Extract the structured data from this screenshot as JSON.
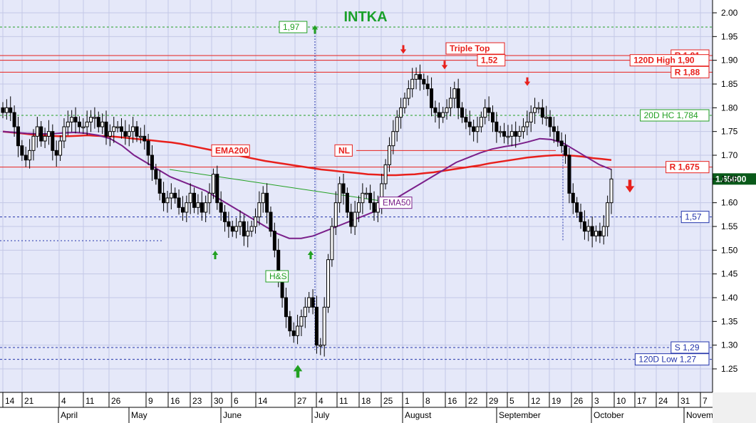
{
  "chart_data": {
    "type": "candlestick",
    "title": "INTKA",
    "last_price": "1.65000",
    "ylim": [
      1.22,
      2.02
    ],
    "yticks": [
      2.0,
      1.95,
      1.9,
      1.85,
      1.8,
      1.75,
      1.7,
      1.65,
      1.6,
      1.55,
      1.5,
      1.45,
      1.4,
      1.35,
      1.3,
      1.25
    ],
    "yticks_text": [
      "2.00",
      "1.95",
      "1.90",
      "1.85",
      "1.80",
      "1.75",
      "1.70",
      "1.65",
      "1.60",
      "1.55",
      "1.50",
      "1.45",
      "1.40",
      "1.35",
      "1.30",
      "1.25"
    ],
    "day_ticks": [
      "14",
      "21",
      "4",
      "11",
      "26",
      "9",
      "16",
      "23",
      "30",
      "6",
      "14",
      "27",
      "4",
      "11",
      "18",
      "25",
      "1",
      "8",
      "16",
      "22",
      "29",
      "5",
      "12",
      "19",
      "26",
      "3",
      "10",
      "17",
      "24",
      "31",
      "7"
    ],
    "months": [
      "April",
      "May",
      "June",
      "July",
      "August",
      "September",
      "October",
      "Novem"
    ],
    "horizontal_levels": [
      {
        "label": "R 1,91",
        "value": 1.91,
        "color": "#e8201c"
      },
      {
        "label": "120D High 1,90",
        "value": 1.9,
        "color": "#e8201c"
      },
      {
        "label": "R 1,88",
        "value": 1.875,
        "color": "#e8201c"
      },
      {
        "label": "20D HC 1,784",
        "value": 1.784,
        "color": "#22a022"
      },
      {
        "label": "R 1,675",
        "value": 1.675,
        "color": "#e8201c"
      },
      {
        "label": "1,57",
        "value": 1.57,
        "color": "#2233aa"
      },
      {
        "label": "S 1,29",
        "value": 1.295,
        "color": "#2233aa"
      },
      {
        "label": "120D Low 1,27",
        "value": 1.27,
        "color": "#2233aa"
      }
    ],
    "annotations": [
      "Triple Top",
      "1,52",
      "1,97",
      "EMA200",
      "EMA50",
      "NL",
      "H&S"
    ],
    "candles_close": [
      1.79,
      1.8,
      1.79,
      1.76,
      1.72,
      1.7,
      1.69,
      1.71,
      1.74,
      1.76,
      1.73,
      1.74,
      1.75,
      1.71,
      1.7,
      1.73,
      1.76,
      1.77,
      1.78,
      1.77,
      1.76,
      1.76,
      1.77,
      1.78,
      1.78,
      1.76,
      1.77,
      1.74,
      1.75,
      1.76,
      1.76,
      1.75,
      1.74,
      1.75,
      1.76,
      1.74,
      1.74,
      1.73,
      1.7,
      1.67,
      1.65,
      1.62,
      1.6,
      1.61,
      1.62,
      1.61,
      1.59,
      1.58,
      1.6,
      1.62,
      1.59,
      1.6,
      1.58,
      1.6,
      1.62,
      1.66,
      1.6,
      1.58,
      1.56,
      1.55,
      1.54,
      1.55,
      1.56,
      1.53,
      1.54,
      1.55,
      1.57,
      1.6,
      1.62,
      1.58,
      1.54,
      1.5,
      1.44,
      1.4,
      1.36,
      1.33,
      1.32,
      1.34,
      1.36,
      1.38,
      1.4,
      1.38,
      1.3,
      1.3,
      1.38,
      1.48,
      1.55,
      1.6,
      1.64,
      1.62,
      1.58,
      1.55,
      1.58,
      1.6,
      1.62,
      1.62,
      1.6,
      1.58,
      1.6,
      1.64,
      1.68,
      1.72,
      1.75,
      1.78,
      1.8,
      1.82,
      1.84,
      1.86,
      1.87,
      1.86,
      1.85,
      1.84,
      1.8,
      1.79,
      1.78,
      1.79,
      1.8,
      1.82,
      1.84,
      1.8,
      1.78,
      1.77,
      1.76,
      1.75,
      1.76,
      1.78,
      1.8,
      1.79,
      1.77,
      1.75,
      1.75,
      1.74,
      1.74,
      1.75,
      1.74,
      1.75,
      1.76,
      1.77,
      1.79,
      1.8,
      1.8,
      1.78,
      1.78,
      1.76,
      1.75,
      1.73,
      1.72,
      1.7,
      1.62,
      1.6,
      1.58,
      1.56,
      1.54,
      1.55,
      1.53,
      1.54,
      1.53,
      1.55,
      1.6,
      1.65
    ],
    "ema200": [
      1.75,
      1.748,
      1.746,
      1.744,
      1.742,
      1.741,
      1.74,
      1.74,
      1.741,
      1.742,
      1.741,
      1.74,
      1.739,
      1.737,
      1.735,
      1.733,
      1.731,
      1.729,
      1.727,
      1.724,
      1.72,
      1.716,
      1.712,
      1.708,
      1.704,
      1.7,
      1.696,
      1.692,
      1.688,
      1.685,
      1.682,
      1.679,
      1.676,
      1.673,
      1.67,
      1.668,
      1.666,
      1.664,
      1.662,
      1.66,
      1.659,
      1.658,
      1.658,
      1.659,
      1.66,
      1.662,
      1.664,
      1.667,
      1.67,
      1.673,
      1.676,
      1.679,
      1.683,
      1.686,
      1.689,
      1.692,
      1.695,
      1.697,
      1.699,
      1.7,
      1.7,
      1.699,
      1.697,
      1.694,
      1.692,
      1.69
    ],
    "ema50": [
      1.75,
      1.748,
      1.746,
      1.745,
      1.745,
      1.747,
      1.748,
      1.746,
      1.742,
      1.735,
      1.72,
      1.7,
      1.685,
      1.67,
      1.655,
      1.645,
      1.635,
      1.625,
      1.61,
      1.595,
      1.58,
      1.565,
      1.55,
      1.535,
      1.525,
      1.525,
      1.53,
      1.54,
      1.55,
      1.56,
      1.57,
      1.58,
      1.595,
      1.61,
      1.625,
      1.64,
      1.655,
      1.67,
      1.685,
      1.695,
      1.705,
      1.713,
      1.718,
      1.722,
      1.728,
      1.735,
      1.733,
      1.725,
      1.71,
      1.695,
      1.68,
      1.67
    ]
  }
}
